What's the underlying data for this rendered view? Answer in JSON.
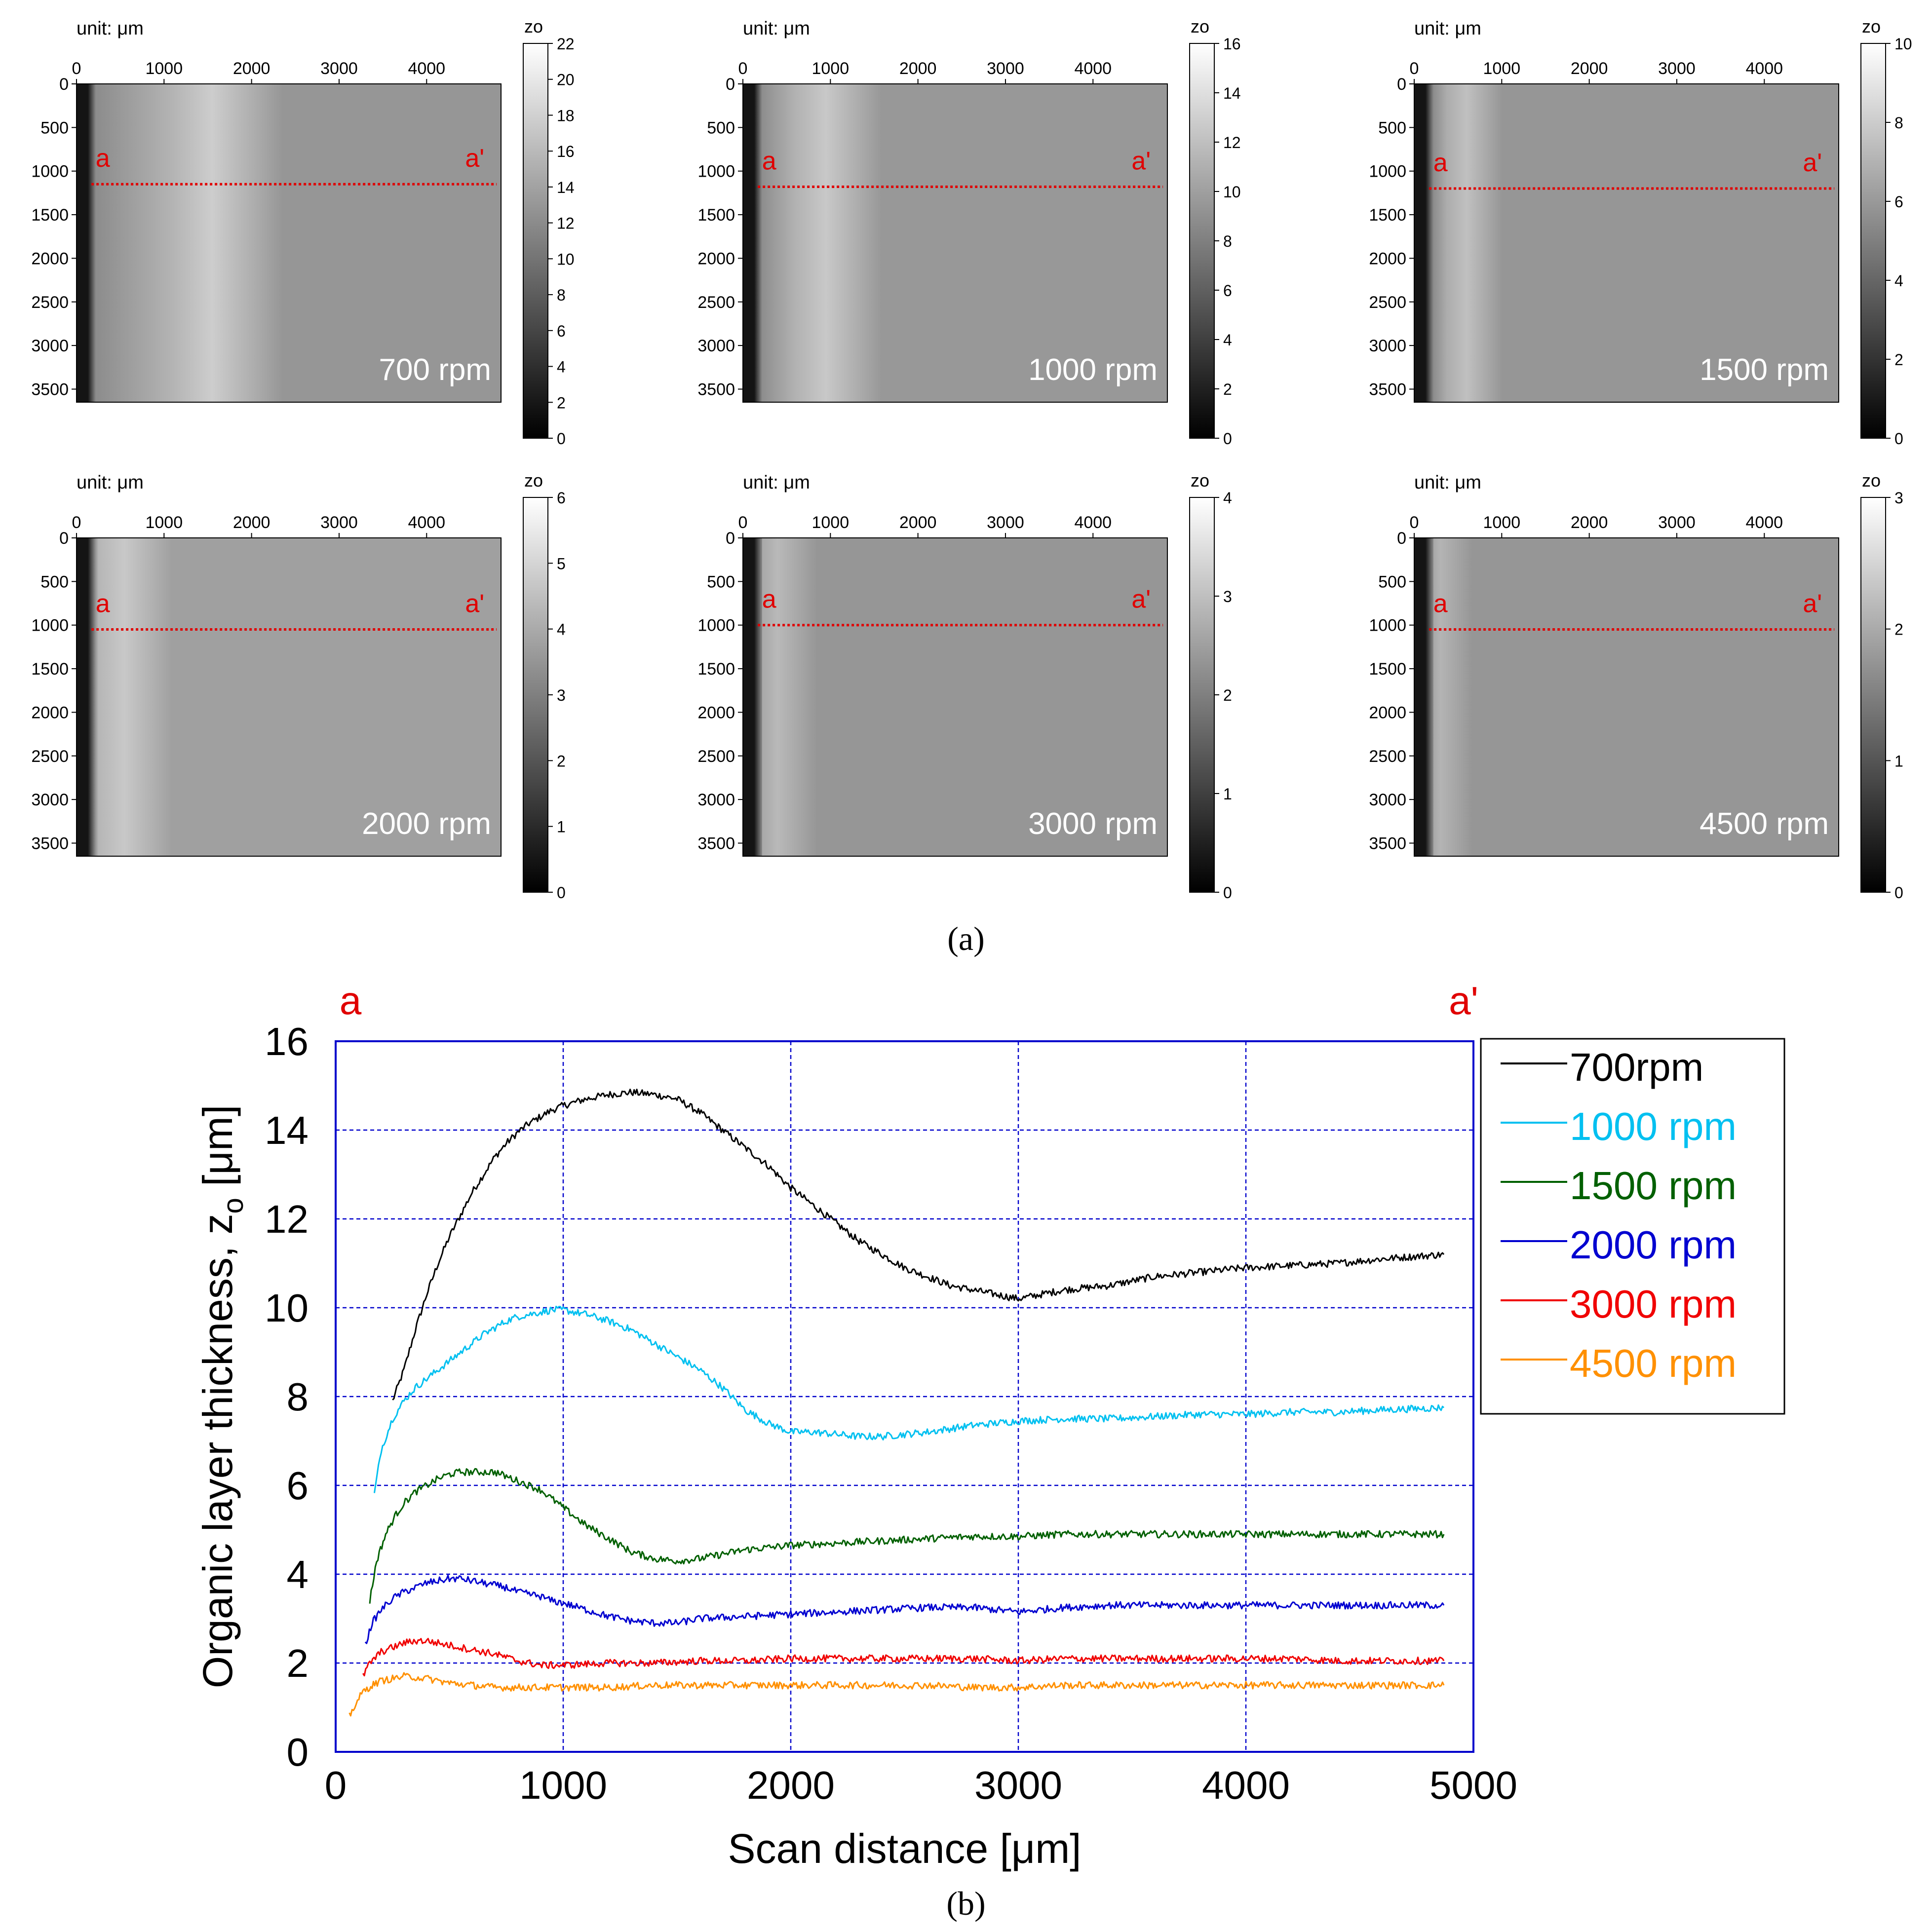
{
  "figure": {
    "caption_a": "(a)",
    "caption_b": "(b)"
  },
  "panel_a": {
    "unit_label": "unit: μm",
    "colorbar_label": "zo",
    "x_ticks": [
      0,
      1000,
      2000,
      3000,
      4000
    ],
    "y_ticks": [
      0,
      500,
      1000,
      1500,
      2000,
      2500,
      3000,
      3500
    ],
    "x_range": [
      0,
      4850
    ],
    "y_range": [
      0,
      3650
    ],
    "line_start_label": "a",
    "line_end_label": "a'",
    "line_color": "#e00000",
    "maps": [
      {
        "speed_label": "700 rpm",
        "colorbar_max": 22,
        "colorbar_ticks": [
          0,
          2,
          4,
          6,
          8,
          10,
          12,
          14,
          16,
          18,
          20,
          22
        ],
        "line_y": 1150,
        "bright_center": 1550,
        "bright_width": 900,
        "base_gray": 150,
        "bright_gray": 205
      },
      {
        "speed_label": "1000 rpm",
        "colorbar_max": 16,
        "colorbar_ticks": [
          0,
          2,
          4,
          6,
          8,
          10,
          12,
          14,
          16
        ],
        "line_y": 1180,
        "bright_center": 950,
        "bright_width": 700,
        "base_gray": 152,
        "bright_gray": 200
      },
      {
        "speed_label": "1500 rpm",
        "colorbar_max": 10,
        "colorbar_ticks": [
          0,
          2,
          4,
          6,
          8,
          10
        ],
        "line_y": 1200,
        "bright_center": 600,
        "bright_width": 450,
        "base_gray": 150,
        "bright_gray": 192
      },
      {
        "speed_label": "2000 rpm",
        "colorbar_max": 6,
        "colorbar_ticks": [
          0,
          1,
          2,
          3,
          4,
          5,
          6
        ],
        "line_y": 1050,
        "bright_center": 550,
        "bright_width": 600,
        "base_gray": 160,
        "bright_gray": 200
      },
      {
        "speed_label": "3000 rpm",
        "colorbar_max": 4,
        "colorbar_ticks": [
          0,
          1,
          2,
          3,
          4
        ],
        "line_y": 1000,
        "bright_center": 400,
        "bright_width": 500,
        "base_gray": 150,
        "bright_gray": 185
      },
      {
        "speed_label": "4500 rpm",
        "colorbar_max": 3,
        "colorbar_ticks": [
          0,
          1,
          2,
          3
        ],
        "line_y": 1050,
        "bright_center": 300,
        "bright_width": 400,
        "base_gray": 150,
        "bright_gray": 180
      }
    ]
  },
  "chart_data": {
    "type": "line",
    "title": "",
    "xlabel": "Scan distance [μm]",
    "ylabel": "Organic layer thickness, z",
    "ylabel_subscript": "o",
    "ylabel_unit": " [μm]",
    "xlim": [
      0,
      5000
    ],
    "ylim": [
      0,
      16
    ],
    "x_ticks": [
      0,
      1000,
      2000,
      3000,
      4000,
      5000
    ],
    "y_ticks": [
      0,
      2,
      4,
      6,
      8,
      10,
      12,
      14,
      16
    ],
    "grid": true,
    "grid_color": "#0000cc",
    "legend_position": "right",
    "top_left_label": "a",
    "top_right_label": "a'",
    "top_label_color": "#e00000",
    "series": [
      {
        "name": "700rpm",
        "color": "#000000",
        "x": [
          250,
          300,
          350,
          400,
          450,
          500,
          550,
          600,
          650,
          700,
          750,
          800,
          850,
          900,
          950,
          1000,
          1100,
          1200,
          1300,
          1400,
          1500,
          1600,
          1700,
          1800,
          1900,
          2000,
          2100,
          2200,
          2300,
          2400,
          2500,
          2600,
          2700,
          2800,
          2900,
          3000,
          3100,
          3200,
          3400,
          3600,
          3800,
          4000,
          4200,
          4400,
          4600,
          4870
        ],
        "y": [
          7.9,
          8.6,
          9.5,
          10.3,
          11.0,
          11.6,
          12.1,
          12.6,
          13.0,
          13.4,
          13.7,
          13.95,
          14.15,
          14.3,
          14.45,
          14.55,
          14.7,
          14.8,
          14.85,
          14.8,
          14.7,
          14.4,
          14.0,
          13.6,
          13.2,
          12.7,
          12.3,
          11.9,
          11.5,
          11.2,
          10.9,
          10.7,
          10.5,
          10.4,
          10.3,
          10.2,
          10.3,
          10.4,
          10.5,
          10.7,
          10.8,
          10.9,
          10.95,
          11.0,
          11.1,
          11.2
        ]
      },
      {
        "name": "1000 rpm",
        "color": "#00c0f0",
        "x": [
          170,
          200,
          250,
          300,
          350,
          400,
          450,
          500,
          550,
          600,
          650,
          700,
          750,
          800,
          850,
          900,
          950,
          1000,
          1100,
          1200,
          1300,
          1400,
          1500,
          1600,
          1700,
          1800,
          1900,
          2000,
          2100,
          2200,
          2300,
          2400,
          2500,
          2600,
          2800,
          3000,
          3200,
          3400,
          3600,
          3800,
          4000,
          4200,
          4400,
          4600,
          4870
        ],
        "y": [
          5.8,
          6.8,
          7.5,
          7.9,
          8.2,
          8.4,
          8.6,
          8.8,
          9.0,
          9.2,
          9.4,
          9.55,
          9.7,
          9.8,
          9.85,
          9.9,
          9.95,
          9.95,
          9.85,
          9.7,
          9.5,
          9.2,
          8.9,
          8.6,
          8.2,
          7.7,
          7.4,
          7.2,
          7.2,
          7.15,
          7.1,
          7.1,
          7.15,
          7.2,
          7.35,
          7.45,
          7.5,
          7.5,
          7.55,
          7.6,
          7.6,
          7.65,
          7.65,
          7.7,
          7.75
        ]
      },
      {
        "name": "1500 rpm",
        "color": "#006000",
        "x": [
          150,
          180,
          220,
          260,
          300,
          350,
          400,
          450,
          500,
          550,
          600,
          650,
          700,
          750,
          800,
          850,
          900,
          950,
          1000,
          1100,
          1200,
          1300,
          1400,
          1500,
          1600,
          1700,
          1800,
          1900,
          2000,
          2200,
          2400,
          2600,
          2800,
          3000,
          3200,
          3400,
          3600,
          3800,
          4000,
          4200,
          4400,
          4600,
          4870
        ],
        "y": [
          3.4,
          4.3,
          4.9,
          5.3,
          5.6,
          5.85,
          6.0,
          6.15,
          6.25,
          6.3,
          6.3,
          6.3,
          6.3,
          6.2,
          6.1,
          6.0,
          5.9,
          5.7,
          5.5,
          5.1,
          4.8,
          4.5,
          4.35,
          4.3,
          4.35,
          4.45,
          4.55,
          4.6,
          4.65,
          4.7,
          4.75,
          4.8,
          4.85,
          4.85,
          4.9,
          4.9,
          4.9,
          4.9,
          4.9,
          4.9,
          4.9,
          4.9,
          4.9
        ]
      },
      {
        "name": "2000 rpm",
        "color": "#0000d0",
        "x": [
          130,
          160,
          200,
          250,
          300,
          350,
          400,
          450,
          500,
          550,
          600,
          650,
          700,
          750,
          800,
          850,
          900,
          950,
          1000,
          1100,
          1200,
          1300,
          1400,
          1500,
          1600,
          1800,
          2000,
          2200,
          2400,
          2600,
          2800,
          3000,
          3200,
          3400,
          3600,
          3800,
          4000,
          4200,
          4400,
          4600,
          4870
        ],
        "y": [
          2.4,
          2.9,
          3.2,
          3.45,
          3.6,
          3.7,
          3.8,
          3.85,
          3.9,
          3.9,
          3.85,
          3.8,
          3.75,
          3.7,
          3.6,
          3.55,
          3.5,
          3.4,
          3.35,
          3.2,
          3.05,
          2.95,
          2.9,
          2.9,
          3.0,
          3.05,
          3.1,
          3.15,
          3.2,
          3.25,
          3.25,
          3.15,
          3.25,
          3.3,
          3.3,
          3.3,
          3.3,
          3.3,
          3.3,
          3.3,
          3.3
        ]
      },
      {
        "name": "3000 rpm",
        "color": "#f00000",
        "x": [
          120,
          150,
          200,
          250,
          300,
          350,
          400,
          450,
          500,
          550,
          600,
          700,
          800,
          900,
          1000,
          1200,
          1400,
          1600,
          1800,
          2000,
          2200,
          2400,
          2600,
          2800,
          3000,
          3200,
          3400,
          3600,
          3800,
          4000,
          4200,
          4400,
          4600,
          4870
        ],
        "y": [
          1.7,
          2.0,
          2.25,
          2.35,
          2.45,
          2.5,
          2.5,
          2.45,
          2.4,
          2.35,
          2.3,
          2.2,
          2.05,
          1.95,
          1.95,
          2.0,
          2.0,
          2.05,
          2.05,
          2.1,
          2.1,
          2.1,
          2.1,
          2.1,
          2.05,
          2.1,
          2.1,
          2.1,
          2.1,
          2.1,
          2.1,
          2.05,
          2.05,
          2.05
        ]
      },
      {
        "name": "4500 rpm",
        "color": "#ff9000",
        "x": [
          60,
          90,
          120,
          160,
          200,
          250,
          300,
          350,
          400,
          450,
          500,
          600,
          700,
          800,
          900,
          1000,
          1200,
          1400,
          1600,
          1800,
          2000,
          2200,
          2400,
          2600,
          2800,
          3000,
          3200,
          3400,
          3600,
          3800,
          4000,
          4200,
          4400,
          4600,
          4870
        ],
        "y": [
          0.8,
          1.1,
          1.35,
          1.5,
          1.6,
          1.65,
          1.7,
          1.68,
          1.65,
          1.6,
          1.55,
          1.5,
          1.45,
          1.45,
          1.45,
          1.45,
          1.45,
          1.5,
          1.5,
          1.5,
          1.5,
          1.5,
          1.5,
          1.5,
          1.45,
          1.45,
          1.5,
          1.5,
          1.5,
          1.5,
          1.5,
          1.5,
          1.5,
          1.5,
          1.5
        ]
      }
    ]
  }
}
